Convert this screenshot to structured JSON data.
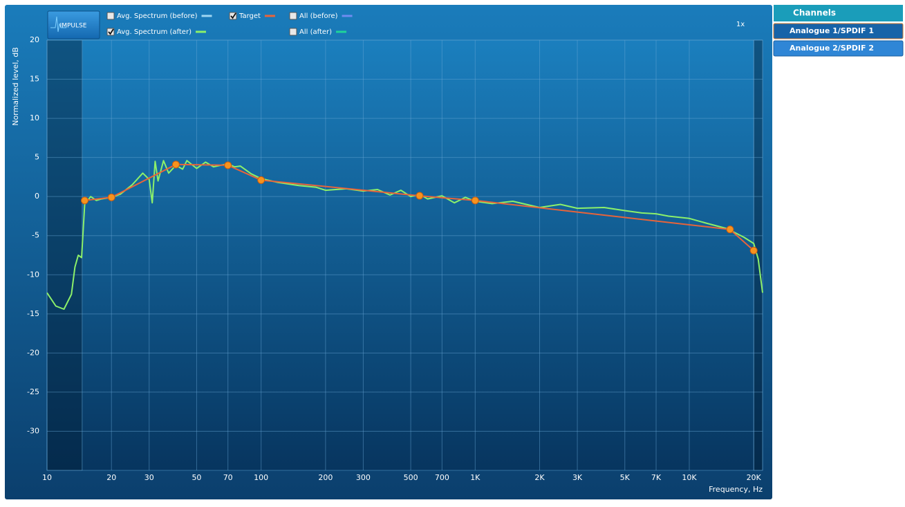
{
  "chart_data": {
    "type": "line",
    "ylabel": "Normalized level, dB",
    "xlabel": "Frequency, Hz",
    "xscale": "log",
    "grid": true,
    "xlim": [
      10,
      22000
    ],
    "ylim": [
      -35,
      20
    ],
    "xticks": [
      10,
      20,
      30,
      50,
      70,
      100,
      200,
      300,
      500,
      700,
      {
        "value": 1000,
        "label": "1K"
      },
      {
        "value": 2000,
        "label": "2K"
      },
      {
        "value": 3000,
        "label": "3K"
      },
      {
        "value": 5000,
        "label": "5K"
      },
      {
        "value": 7000,
        "label": "7K"
      },
      {
        "value": 10000,
        "label": "10K"
      },
      {
        "value": 20000,
        "label": "20K"
      }
    ],
    "yticks": [
      20,
      15,
      10,
      5,
      0,
      -5,
      -10,
      -15,
      -20,
      -25,
      -30
    ],
    "shaded_ranges": [
      [
        10,
        14.6
      ],
      [
        20000,
        22000
      ]
    ],
    "series": [
      {
        "name": "Avg. Spectrum (before)",
        "color": "#9fd6f2",
        "checked": false
      },
      {
        "name": "Target",
        "color": "#e8643a",
        "checked": true,
        "markers": true,
        "x": [
          15,
          20,
          40,
          70,
          100,
          550,
          1000,
          15500,
          20000
        ],
        "values": [
          -0.5,
          -0.1,
          4.1,
          4.0,
          2.1,
          0.1,
          -0.5,
          -4.2,
          -6.9
        ]
      },
      {
        "name": "All (before)",
        "color": "#6f8cf0",
        "checked": false
      },
      {
        "name": "Avg. Spectrum (after)",
        "color": "#8cf06a",
        "checked": true,
        "x": [
          10,
          11,
          12,
          13,
          13.5,
          14,
          14.5,
          15,
          16,
          17,
          18,
          20,
          22,
          25,
          28,
          30,
          31,
          32,
          33,
          35,
          37,
          40,
          43,
          45,
          50,
          55,
          60,
          70,
          75,
          80,
          90,
          100,
          120,
          150,
          180,
          200,
          250,
          300,
          350,
          400,
          450,
          500,
          550,
          600,
          700,
          800,
          900,
          1000,
          1200,
          1500,
          2000,
          2500,
          3000,
          4000,
          5000,
          6000,
          7000,
          8000,
          10000,
          12000,
          15000,
          18000,
          20000,
          21000,
          22000
        ],
        "values": [
          -12.3,
          -14.0,
          -14.4,
          -12.5,
          -9.0,
          -7.5,
          -7.8,
          -1.0,
          0.0,
          -0.5,
          -0.3,
          -0.1,
          0.3,
          1.5,
          3.0,
          2.2,
          -0.8,
          4.5,
          2.0,
          4.6,
          3.0,
          4.0,
          3.5,
          4.6,
          3.6,
          4.4,
          3.8,
          4.2,
          3.8,
          3.9,
          2.9,
          2.3,
          1.8,
          1.4,
          1.2,
          0.8,
          1.0,
          0.7,
          0.9,
          0.2,
          0.8,
          0.0,
          0.3,
          -0.3,
          0.1,
          -0.8,
          -0.1,
          -0.6,
          -0.9,
          -0.6,
          -1.4,
          -1.0,
          -1.5,
          -1.4,
          -1.8,
          -2.1,
          -2.2,
          -2.5,
          -2.8,
          -3.4,
          -4.1,
          -5.2,
          -6.0,
          -8.0,
          -12.3
        ]
      },
      {
        "name": "All (after)",
        "color": "#1fd39a",
        "checked": false
      }
    ]
  },
  "ui": {
    "impulse_button": "IMPULSE",
    "zoom": "1x"
  },
  "channels": {
    "title": "Channels",
    "items": [
      "Analogue 1/SPDIF 1",
      "Analogue 2/SPDIF 2"
    ],
    "selected": 0
  }
}
